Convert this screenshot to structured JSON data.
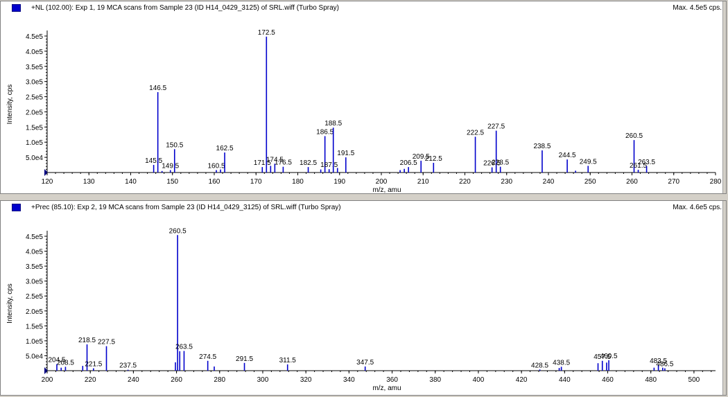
{
  "panels": [
    {
      "title": "+NL (102.00): Exp 1, 19 MCA scans from Sample 23 (ID H14_0429_3125) of SRL.wiff (Turbo Spray)",
      "max_label": "Max. 4.5e5 cps.",
      "accent": "#0000cc"
    },
    {
      "title": "+Prec (85.10): Exp 2, 19 MCA scans from Sample 23 (ID H14_0429_3125) of SRL.wiff (Turbo Spray)",
      "max_label": "Max. 4.6e5 cps.",
      "accent": "#0000cc"
    }
  ],
  "chart_data": [
    {
      "type": "bar",
      "xlabel": "m/z, amu",
      "ylabel": "Intensity, cps",
      "xlim": [
        120,
        280
      ],
      "ylim": [
        0,
        450000
      ],
      "x_ticks": [
        "120",
        "130",
        "140",
        "150",
        "160",
        "170",
        "180",
        "190",
        "200",
        "210",
        "220",
        "230",
        "240",
        "250",
        "260",
        "270",
        "280"
      ],
      "y_ticks": [
        "5.0e4",
        "1.0e5",
        "1.5e5",
        "2.0e5",
        "2.5e5",
        "3.0e5",
        "3.5e5",
        "4.0e5",
        "4.5e5"
      ],
      "peaks": [
        {
          "x": 145.5,
          "y": 25000,
          "label": "145.5"
        },
        {
          "x": 146.5,
          "y": 265000,
          "label": "146.5"
        },
        {
          "x": 147.5,
          "y": 5000,
          "label": ""
        },
        {
          "x": 149.5,
          "y": 8000,
          "label": "149.5"
        },
        {
          "x": 150.5,
          "y": 77000,
          "label": "150.5"
        },
        {
          "x": 160.5,
          "y": 8000,
          "label": "160.5"
        },
        {
          "x": 161.5,
          "y": 10000,
          "label": ""
        },
        {
          "x": 162.5,
          "y": 66000,
          "label": "162.5"
        },
        {
          "x": 171.5,
          "y": 18000,
          "label": "171.5"
        },
        {
          "x": 172.5,
          "y": 448000,
          "label": "172.5"
        },
        {
          "x": 173.5,
          "y": 22000,
          "label": ""
        },
        {
          "x": 174.5,
          "y": 29000,
          "label": "174.5"
        },
        {
          "x": 176.5,
          "y": 19000,
          "label": "176.5"
        },
        {
          "x": 182.5,
          "y": 18000,
          "label": "182.5"
        },
        {
          "x": 185.5,
          "y": 10000,
          "label": ""
        },
        {
          "x": 186.5,
          "y": 120000,
          "label": "186.5"
        },
        {
          "x": 187.5,
          "y": 11000,
          "label": "187.5"
        },
        {
          "x": 188.5,
          "y": 148000,
          "label": "188.5"
        },
        {
          "x": 189.5,
          "y": 15000,
          "label": ""
        },
        {
          "x": 191.5,
          "y": 50000,
          "label": "191.5"
        },
        {
          "x": 204.5,
          "y": 8000,
          "label": ""
        },
        {
          "x": 205.5,
          "y": 12000,
          "label": ""
        },
        {
          "x": 206.5,
          "y": 18000,
          "label": "206.5"
        },
        {
          "x": 209.5,
          "y": 39000,
          "label": "209.5"
        },
        {
          "x": 212.5,
          "y": 32000,
          "label": "212.5"
        },
        {
          "x": 222.5,
          "y": 118000,
          "label": "222.5"
        },
        {
          "x": 226.5,
          "y": 17000,
          "label": "226.5"
        },
        {
          "x": 227.5,
          "y": 138000,
          "label": "227.5"
        },
        {
          "x": 228.5,
          "y": 19000,
          "label": "228.5"
        },
        {
          "x": 238.5,
          "y": 73000,
          "label": "238.5"
        },
        {
          "x": 244.5,
          "y": 43000,
          "label": "244.5"
        },
        {
          "x": 246.5,
          "y": 6000,
          "label": ""
        },
        {
          "x": 249.5,
          "y": 22000,
          "label": "249.5"
        },
        {
          "x": 260.5,
          "y": 107000,
          "label": "260.5"
        },
        {
          "x": 261.5,
          "y": 9000,
          "label": "261.5"
        },
        {
          "x": 263.5,
          "y": 21000,
          "label": "263.5"
        }
      ]
    },
    {
      "type": "bar",
      "xlabel": "m/z, amu",
      "ylabel": "Intensity, cps",
      "xlim": [
        200,
        510
      ],
      "ylim": [
        0,
        460000
      ],
      "x_ticks": [
        "200",
        "220",
        "240",
        "260",
        "280",
        "300",
        "320",
        "340",
        "360",
        "380",
        "400",
        "420",
        "440",
        "460",
        "480",
        "500"
      ],
      "y_ticks": [
        "5.0e4",
        "1.0e5",
        "1.5e5",
        "2.0e5",
        "2.5e5",
        "3.0e5",
        "3.5e5",
        "4.0e5",
        "4.5e5"
      ],
      "peaks": [
        {
          "x": 204.5,
          "y": 22000,
          "label": "204.5"
        },
        {
          "x": 206.5,
          "y": 10000,
          "label": ""
        },
        {
          "x": 208.5,
          "y": 13000,
          "label": "208.5"
        },
        {
          "x": 216.5,
          "y": 16000,
          "label": ""
        },
        {
          "x": 218.5,
          "y": 88000,
          "label": "218.5"
        },
        {
          "x": 221.5,
          "y": 8000,
          "label": "221.5"
        },
        {
          "x": 227.5,
          "y": 82000,
          "label": "227.5"
        },
        {
          "x": 237.5,
          "y": 3000,
          "label": "237.5"
        },
        {
          "x": 259.5,
          "y": 28000,
          "label": ""
        },
        {
          "x": 260.5,
          "y": 454000,
          "label": "260.5"
        },
        {
          "x": 261.5,
          "y": 65000,
          "label": ""
        },
        {
          "x": 263.5,
          "y": 66000,
          "label": "263.5"
        },
        {
          "x": 274.5,
          "y": 33000,
          "label": "274.5"
        },
        {
          "x": 277.5,
          "y": 14000,
          "label": ""
        },
        {
          "x": 291.5,
          "y": 26000,
          "label": "291.5"
        },
        {
          "x": 311.5,
          "y": 21000,
          "label": "311.5"
        },
        {
          "x": 347.5,
          "y": 14000,
          "label": "347.5"
        },
        {
          "x": 428.5,
          "y": 4000,
          "label": "428.5"
        },
        {
          "x": 437.5,
          "y": 9000,
          "label": ""
        },
        {
          "x": 438.5,
          "y": 13000,
          "label": "438.5"
        },
        {
          "x": 455.5,
          "y": 25000,
          "label": ""
        },
        {
          "x": 457.5,
          "y": 33000,
          "label": "457.5"
        },
        {
          "x": 459.5,
          "y": 27000,
          "label": ""
        },
        {
          "x": 460.5,
          "y": 35000,
          "label": "460.5"
        },
        {
          "x": 481.5,
          "y": 10000,
          "label": ""
        },
        {
          "x": 483.5,
          "y": 19000,
          "label": "483.5"
        },
        {
          "x": 485.5,
          "y": 10000,
          "label": ""
        },
        {
          "x": 486.5,
          "y": 8000,
          "label": "486.5"
        }
      ]
    }
  ]
}
